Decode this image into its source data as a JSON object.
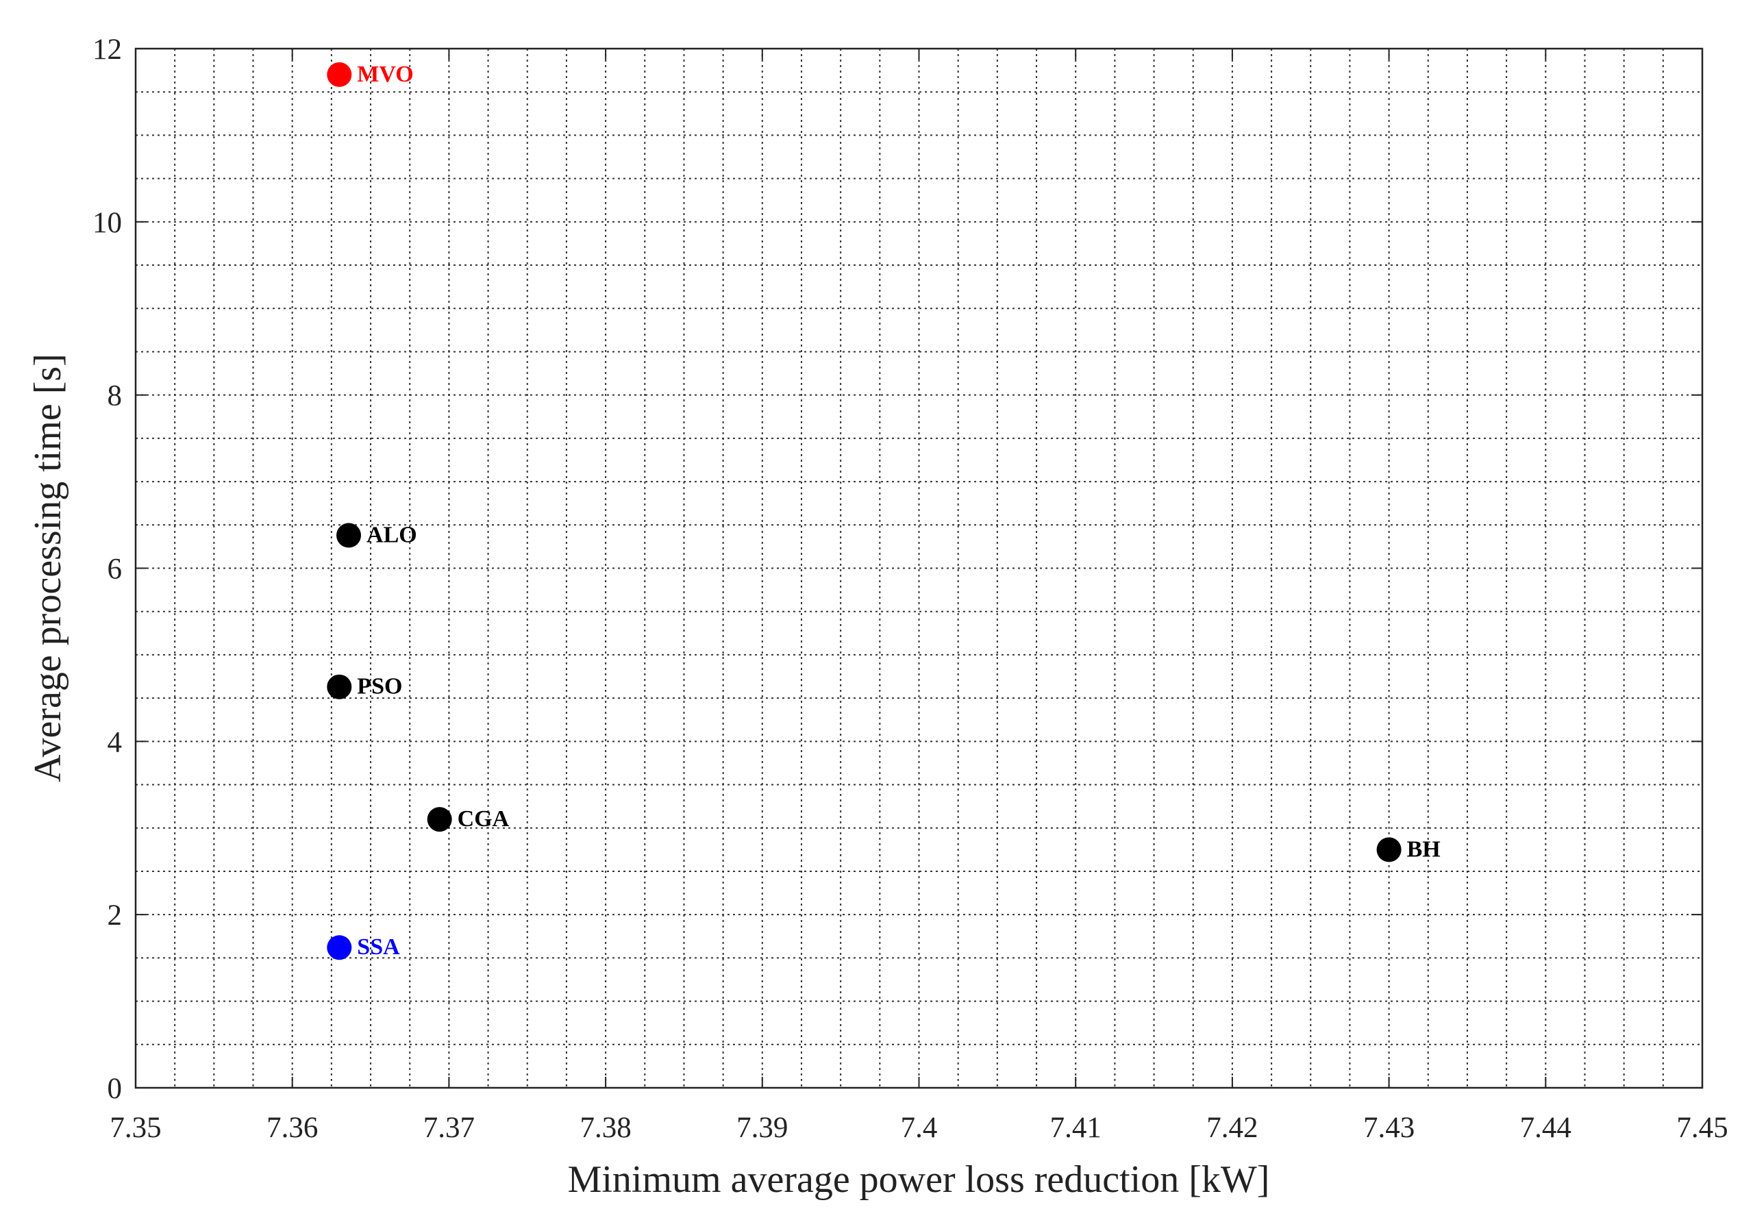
{
  "chart_data": {
    "type": "scatter",
    "xlabel": "Minimum average power loss reduction [kW]",
    "ylabel": "Average processing time [s]",
    "xlim": [
      7.35,
      7.45
    ],
    "xticks": [
      7.35,
      7.36,
      7.37,
      7.38,
      7.39,
      7.4,
      7.41,
      7.42,
      7.43,
      7.44,
      7.45
    ],
    "ylim": [
      0,
      12
    ],
    "yticks": [
      0,
      2,
      4,
      6,
      8,
      10,
      12
    ],
    "grid": true,
    "series": [
      {
        "name": "MVO",
        "color": "#ff0000",
        "x": [
          7.363
        ],
        "values": [
          11.7
        ]
      },
      {
        "name": "ALO",
        "color": "#000000",
        "x": [
          7.3636
        ],
        "values": [
          6.38
        ]
      },
      {
        "name": "PSO",
        "color": "#000000",
        "x": [
          7.363
        ],
        "values": [
          4.63
        ]
      },
      {
        "name": "CGA",
        "color": "#000000",
        "x": [
          7.3694
        ],
        "values": [
          3.1
        ]
      },
      {
        "name": "BH",
        "color": "#000000",
        "x": [
          7.43
        ],
        "values": [
          2.75
        ]
      },
      {
        "name": "SSA",
        "color": "#0000ff",
        "x": [
          7.363
        ],
        "values": [
          1.62
        ]
      }
    ]
  }
}
